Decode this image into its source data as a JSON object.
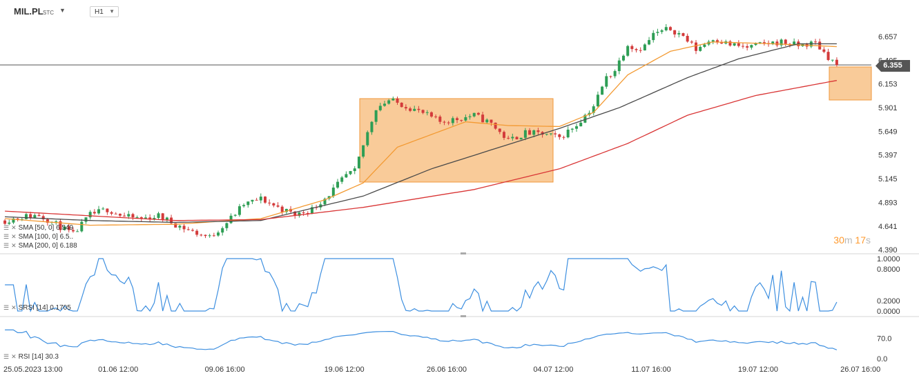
{
  "header": {
    "symbol": "MIL.PL",
    "exchange": "STC",
    "timeframe": "H1"
  },
  "current_price": "6.355",
  "countdown": {
    "minutes": "30",
    "m": "m",
    "seconds": "17",
    "s": "s"
  },
  "indicators": {
    "sma50": "SMA [50, 0] 6.549",
    "sma100": "SMA [100, 0] 6.5..",
    "sma200": "SMA [200, 0] 6.188",
    "srsi": "SRSI [14] 0.1705",
    "rsi": "RSI [14] 30.3"
  },
  "colors": {
    "sma50": "#f39a32",
    "sma100": "#4a4a4a",
    "sma200": "#d93535",
    "up_candle": "#2e9e55",
    "down_candle": "#d33b3b",
    "oscillator": "#3d8fe0",
    "highlight": "#f7b56e"
  },
  "chart_data": [
    {
      "type": "candlestick",
      "panel": "price",
      "y_ticks": [
        "6.657",
        "6.405",
        "6.153",
        "5.901",
        "5.649",
        "5.397",
        "5.145",
        "4.893",
        "4.641",
        "4.390"
      ],
      "ylim": [
        4.39,
        6.657
      ],
      "x_ticks": [
        "25.05.2023 13:00",
        "01.06 12:00",
        "09.06 16:00",
        "19.06 12:00",
        "26.06 16:00",
        "04.07 12:00",
        "11.07 16:00",
        "19.07 12:00",
        "26.07 16:00"
      ],
      "close_path": [
        [
          0,
          4.7
        ],
        [
          4,
          4.74
        ],
        [
          8,
          4.76
        ],
        [
          12,
          4.66
        ],
        [
          16,
          4.55
        ],
        [
          20,
          4.76
        ],
        [
          24,
          4.82
        ],
        [
          28,
          4.74
        ],
        [
          32,
          4.72
        ],
        [
          36,
          4.75
        ],
        [
          40,
          4.66
        ],
        [
          44,
          4.58
        ],
        [
          48,
          4.52
        ],
        [
          52,
          4.68
        ],
        [
          56,
          4.87
        ],
        [
          60,
          4.93
        ],
        [
          64,
          4.84
        ],
        [
          68,
          4.76
        ],
        [
          72,
          4.82
        ],
        [
          76,
          4.98
        ],
        [
          80,
          5.18
        ],
        [
          82,
          5.22
        ],
        [
          84,
          5.5
        ],
        [
          87,
          5.9
        ],
        [
          90,
          5.98
        ],
        [
          94,
          5.92
        ],
        [
          98,
          5.84
        ],
        [
          102,
          5.75
        ],
        [
          106,
          5.78
        ],
        [
          110,
          5.82
        ],
        [
          114,
          5.73
        ],
        [
          118,
          5.55
        ],
        [
          122,
          5.63
        ],
        [
          126,
          5.62
        ],
        [
          130,
          5.58
        ],
        [
          134,
          5.72
        ],
        [
          138,
          5.92
        ],
        [
          141,
          6.22
        ],
        [
          143,
          6.3
        ],
        [
          146,
          6.58
        ],
        [
          148,
          6.52
        ],
        [
          150,
          6.56
        ],
        [
          152,
          6.68
        ],
        [
          156,
          6.74
        ],
        [
          159,
          6.66
        ],
        [
          162,
          6.52
        ],
        [
          166,
          6.64
        ],
        [
          170,
          6.57
        ],
        [
          174,
          6.54
        ],
        [
          178,
          6.58
        ],
        [
          182,
          6.6
        ],
        [
          186,
          6.56
        ],
        [
          190,
          6.59
        ],
        [
          193,
          6.44
        ],
        [
          195,
          6.355
        ]
      ],
      "series": [
        {
          "name": "SMA [50, 0]",
          "values": [
            [
              0,
              4.72
            ],
            [
              20,
              4.65
            ],
            [
              40,
              4.66
            ],
            [
              60,
              4.72
            ],
            [
              75,
              4.92
            ],
            [
              84,
              5.1
            ],
            [
              92,
              5.48
            ],
            [
              108,
              5.75
            ],
            [
              118,
              5.71
            ],
            [
              130,
              5.7
            ],
            [
              138,
              5.85
            ],
            [
              146,
              6.25
            ],
            [
              156,
              6.5
            ],
            [
              166,
              6.6
            ],
            [
              180,
              6.58
            ],
            [
              195,
              6.55
            ]
          ]
        },
        {
          "name": "SMA [100, 0]",
          "values": [
            [
              0,
              4.74
            ],
            [
              20,
              4.7
            ],
            [
              40,
              4.68
            ],
            [
              60,
              4.7
            ],
            [
              84,
              4.96
            ],
            [
              100,
              5.25
            ],
            [
              116,
              5.48
            ],
            [
              130,
              5.68
            ],
            [
              144,
              5.9
            ],
            [
              160,
              6.22
            ],
            [
              172,
              6.42
            ],
            [
              186,
              6.58
            ],
            [
              195,
              6.58
            ]
          ]
        },
        {
          "name": "SMA [200, 0]",
          "values": [
            [
              0,
              4.8
            ],
            [
              20,
              4.75
            ],
            [
              40,
              4.7
            ],
            [
              60,
              4.71
            ],
            [
              84,
              4.84
            ],
            [
              110,
              5.03
            ],
            [
              130,
              5.25
            ],
            [
              146,
              5.52
            ],
            [
              160,
              5.82
            ],
            [
              176,
              6.03
            ],
            [
              195,
              6.19
            ]
          ]
        }
      ]
    },
    {
      "type": "line",
      "panel": "srsi",
      "name": "SRSI [14]",
      "y_ticks": [
        "1.0000",
        "0.8000",
        "0.2000",
        "0.0000"
      ],
      "ylim": [
        0,
        1
      ],
      "last_value": 0.1705
    },
    {
      "type": "line",
      "panel": "rsi",
      "name": "RSI [14]",
      "y_ticks": [
        "70.0",
        "0.0"
      ],
      "ylim": [
        0,
        100
      ],
      "last_value": 30.3
    }
  ]
}
